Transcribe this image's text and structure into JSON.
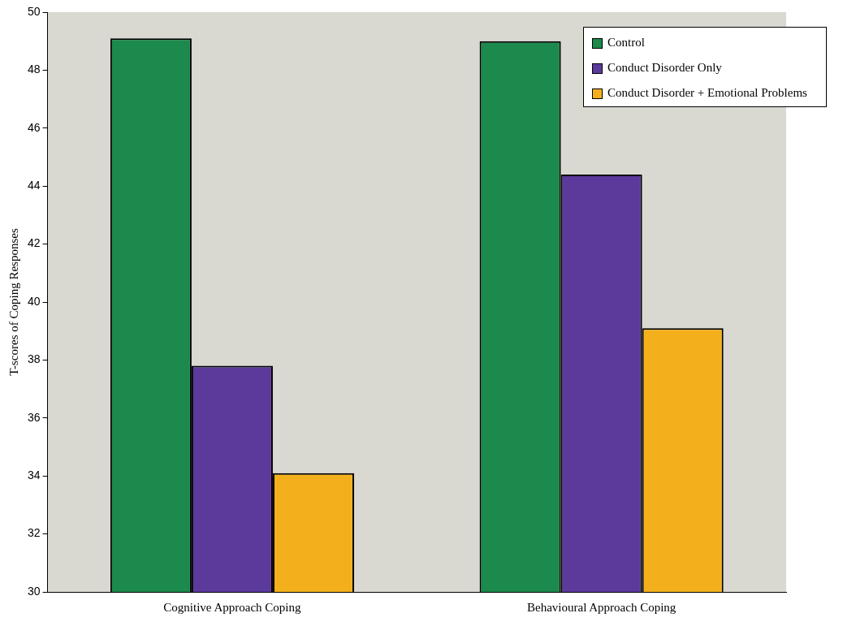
{
  "chart_data": {
    "type": "bar",
    "ylabel": "T-scores of Coping Responses",
    "categories": [
      "Cognitive Approach Coping",
      "Behavioural Approach Coping"
    ],
    "series": [
      {
        "name": "Control",
        "color": "#1b8a4c",
        "values": [
          49.1,
          49.0
        ]
      },
      {
        "name": "Conduct Disorder Only",
        "color": "#5b3a9c",
        "values": [
          37.8,
          44.4
        ]
      },
      {
        "name": "Conduct Disorder + Emotional Problems",
        "color": "#f4b01c",
        "values": [
          34.1,
          39.1
        ]
      }
    ],
    "ylim": [
      30,
      50
    ],
    "yticks": [
      30,
      32,
      34,
      36,
      38,
      40,
      42,
      44,
      46,
      48,
      50
    ],
    "grid": false,
    "legend": "top right"
  }
}
